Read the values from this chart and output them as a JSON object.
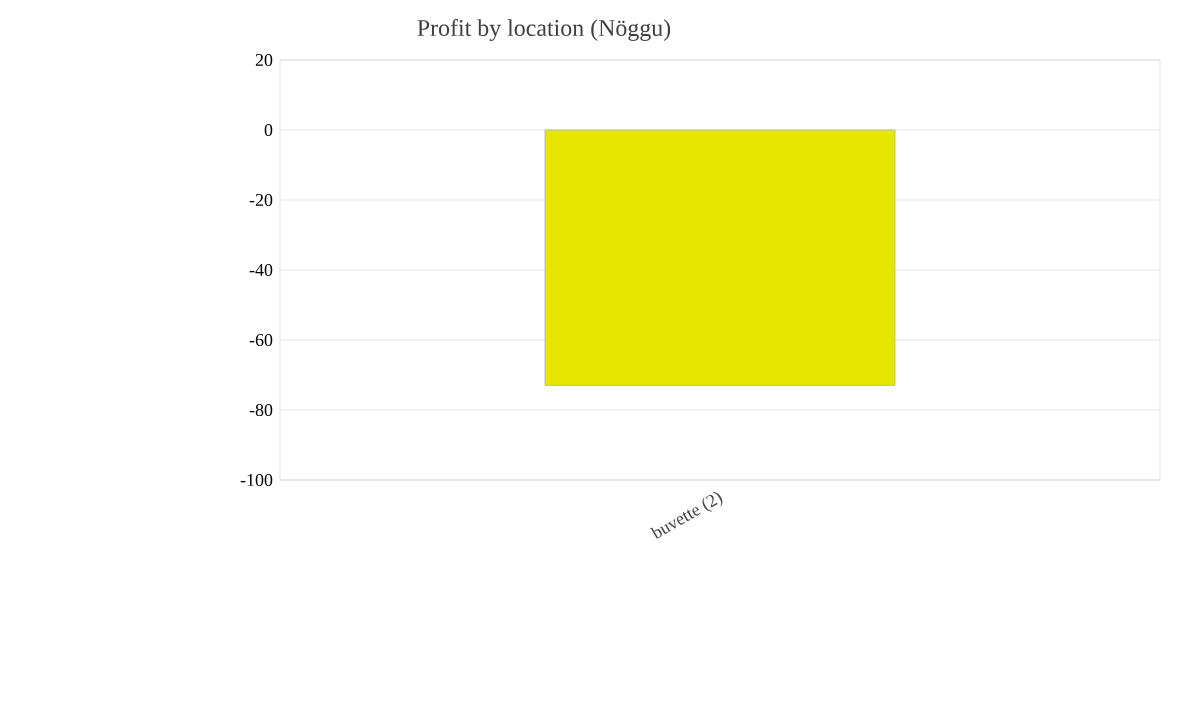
{
  "chart_data": {
    "type": "bar",
    "title": "Profit by location  (Nöggu)",
    "categories": [
      "buvette (2)"
    ],
    "values": [
      -73
    ],
    "color": "#e6e600",
    "ylim": [
      -100,
      20
    ],
    "yticks": [
      -100,
      -80,
      -60,
      -40,
      -20,
      0,
      20
    ],
    "grid": "y"
  }
}
